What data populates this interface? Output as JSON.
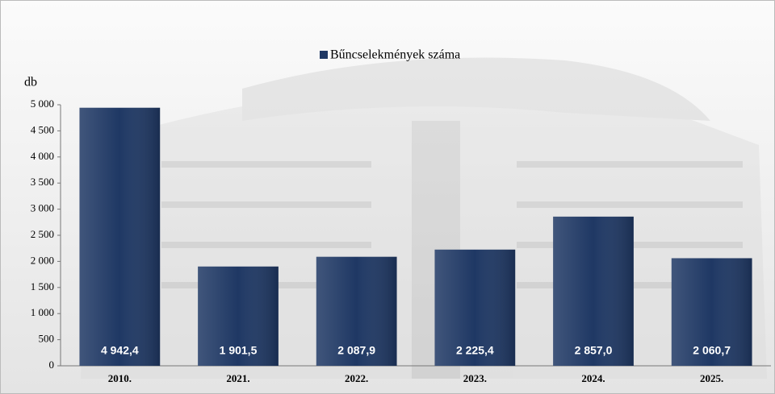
{
  "chart_data": {
    "type": "bar",
    "y_axis_label": "db",
    "categories": [
      "2010.",
      "2021.",
      "2022.",
      "2023.",
      "2024.",
      "2025."
    ],
    "series": [
      {
        "name": "Bűncselekmények száma",
        "color": "#1f3864",
        "values": [
          4942.4,
          1901.5,
          2087.9,
          2225.4,
          2857.0,
          2060.7
        ],
        "value_labels": [
          "4 942,4",
          "1 901,5",
          "2 087,9",
          "2 225,4",
          "2 857,0",
          "2 060,7"
        ]
      }
    ],
    "ylim": [
      0,
      5000
    ],
    "yticks": [
      0,
      500,
      {
        "value": 1000,
        "label": "1 000"
      },
      {
        "value": 1500,
        "label": "1 500"
      },
      {
        "value": 2000,
        "label": "2 000"
      },
      {
        "value": 2500,
        "label": "2 500"
      },
      {
        "value": 3000,
        "label": "3 000"
      },
      {
        "value": 3500,
        "label": "3 500"
      },
      {
        "value": 4000,
        "label": "4 000"
      },
      {
        "value": 4500,
        "label": "4 500"
      },
      {
        "value": 5000,
        "label": "5 000"
      }
    ],
    "legend": "top"
  }
}
